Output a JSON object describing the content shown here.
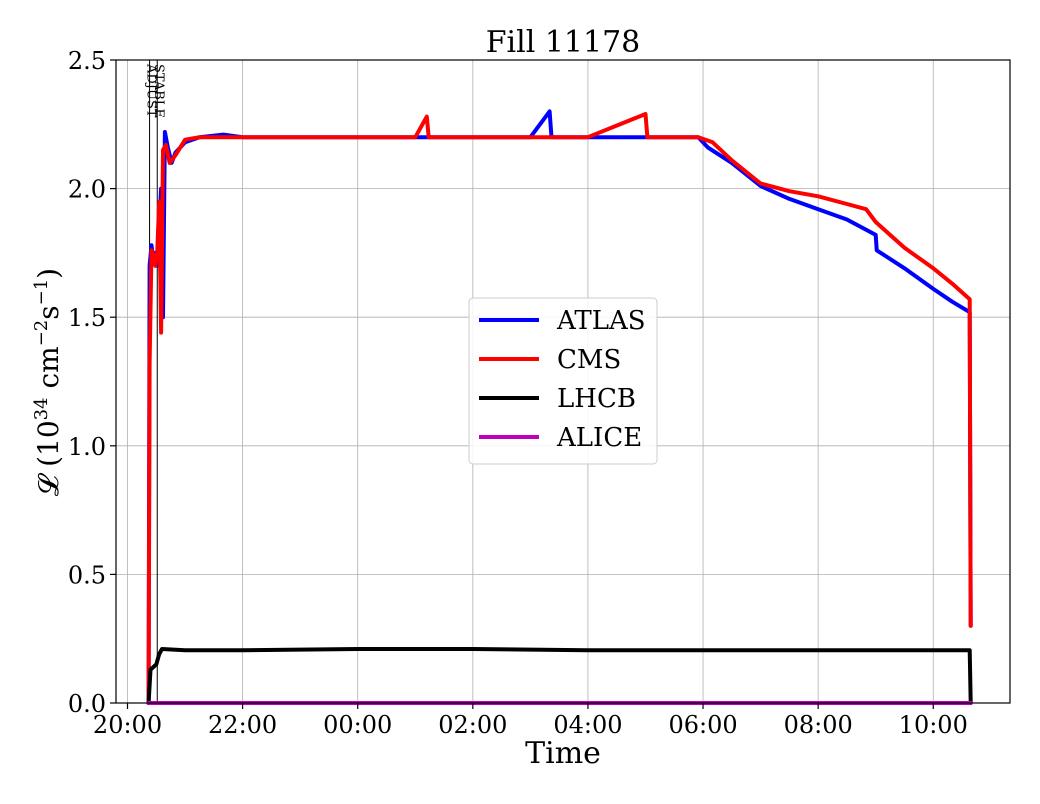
{
  "chart_data": {
    "type": "line",
    "title": "Fill 11178",
    "xlabel": "Time",
    "ylabel_prefix": "𝓛 (10",
    "ylabel_exp1": "34",
    "ylabel_mid": " cm",
    "ylabel_exp2": "−2",
    "ylabel_mid2": "s",
    "ylabel_exp3": "−1",
    "ylabel_suffix": ")",
    "xlim": [
      "19:48",
      "11:20"
    ],
    "ylim": [
      0,
      2.5
    ],
    "x_ticks": [
      "20:00",
      "22:00",
      "00:00",
      "02:00",
      "04:00",
      "06:00",
      "08:00",
      "10:00"
    ],
    "y_ticks": [
      "0.0",
      "0.5",
      "1.0",
      "1.5",
      "2.0",
      "2.5"
    ],
    "grid": true,
    "legend_position": "center-right",
    "markers": [
      {
        "label": "ADJUST",
        "time": "20:23"
      },
      {
        "label": "STABLE",
        "time": "20:31"
      }
    ],
    "series": [
      {
        "name": "ATLAS",
        "color": "#0000ff",
        "points": [
          [
            "20:22",
            0.0
          ],
          [
            "20:23",
            1.7
          ],
          [
            "20:25",
            1.78
          ],
          [
            "20:27",
            1.72
          ],
          [
            "20:29",
            1.75
          ],
          [
            "20:31",
            1.7
          ],
          [
            "20:33",
            1.85
          ],
          [
            "20:35",
            2.0
          ],
          [
            "20:37",
            1.5
          ],
          [
            "20:39",
            2.22
          ],
          [
            "20:42",
            2.16
          ],
          [
            "20:46",
            2.1
          ],
          [
            "20:50",
            2.14
          ],
          [
            "21:00",
            2.18
          ],
          [
            "21:15",
            2.2
          ],
          [
            "21:40",
            2.21
          ],
          [
            "22:00",
            2.2
          ],
          [
            "23:00",
            2.2
          ],
          [
            "00:00",
            2.2
          ],
          [
            "01:00",
            2.2
          ],
          [
            "02:00",
            2.2
          ],
          [
            "03:00",
            2.2
          ],
          [
            "03:20",
            2.3
          ],
          [
            "03:22",
            2.2
          ],
          [
            "04:00",
            2.2
          ],
          [
            "05:00",
            2.2
          ],
          [
            "05:55",
            2.2
          ],
          [
            "06:05",
            2.16
          ],
          [
            "06:30",
            2.1
          ],
          [
            "07:00",
            2.01
          ],
          [
            "07:30",
            1.96
          ],
          [
            "08:00",
            1.92
          ],
          [
            "08:30",
            1.88
          ],
          [
            "09:00",
            1.82
          ],
          [
            "09:01",
            1.76
          ],
          [
            "09:30",
            1.69
          ],
          [
            "10:00",
            1.61
          ],
          [
            "10:20",
            1.56
          ],
          [
            "10:38",
            1.52
          ],
          [
            "10:39",
            0.3
          ]
        ]
      },
      {
        "name": "CMS",
        "color": "#ff0000",
        "points": [
          [
            "20:22",
            0.0
          ],
          [
            "20:23",
            1.32
          ],
          [
            "20:25",
            1.76
          ],
          [
            "20:27",
            1.74
          ],
          [
            "20:29",
            1.7
          ],
          [
            "20:31",
            1.75
          ],
          [
            "20:33",
            1.95
          ],
          [
            "20:35",
            1.44
          ],
          [
            "20:37",
            2.15
          ],
          [
            "20:40",
            2.17
          ],
          [
            "20:44",
            2.1
          ],
          [
            "20:50",
            2.13
          ],
          [
            "21:00",
            2.19
          ],
          [
            "21:15",
            2.2
          ],
          [
            "21:40",
            2.2
          ],
          [
            "22:00",
            2.2
          ],
          [
            "23:00",
            2.2
          ],
          [
            "00:00",
            2.2
          ],
          [
            "01:00",
            2.2
          ],
          [
            "01:12",
            2.28
          ],
          [
            "01:14",
            2.2
          ],
          [
            "02:00",
            2.2
          ],
          [
            "03:00",
            2.2
          ],
          [
            "04:00",
            2.2
          ],
          [
            "05:00",
            2.29
          ],
          [
            "05:02",
            2.2
          ],
          [
            "05:55",
            2.2
          ],
          [
            "06:10",
            2.18
          ],
          [
            "06:30",
            2.11
          ],
          [
            "07:00",
            2.02
          ],
          [
            "07:30",
            1.99
          ],
          [
            "08:00",
            1.97
          ],
          [
            "08:30",
            1.94
          ],
          [
            "08:50",
            1.92
          ],
          [
            "09:00",
            1.87
          ],
          [
            "09:30",
            1.77
          ],
          [
            "10:00",
            1.69
          ],
          [
            "10:20",
            1.63
          ],
          [
            "10:38",
            1.57
          ],
          [
            "10:39",
            0.3
          ]
        ]
      },
      {
        "name": "LHCB",
        "color": "#000000",
        "points": [
          [
            "20:22",
            0.0
          ],
          [
            "20:24",
            0.13
          ],
          [
            "20:27",
            0.14
          ],
          [
            "20:30",
            0.15
          ],
          [
            "20:33",
            0.19
          ],
          [
            "20:36",
            0.21
          ],
          [
            "21:00",
            0.205
          ],
          [
            "22:00",
            0.205
          ],
          [
            "00:00",
            0.21
          ],
          [
            "02:00",
            0.21
          ],
          [
            "04:00",
            0.205
          ],
          [
            "06:00",
            0.205
          ],
          [
            "08:00",
            0.205
          ],
          [
            "10:00",
            0.205
          ],
          [
            "10:38",
            0.205
          ],
          [
            "10:39",
            0.0
          ]
        ]
      },
      {
        "name": "ALICE",
        "color": "#bf00bf",
        "points": [
          [
            "20:22",
            0.0
          ],
          [
            "10:39",
            0.0
          ]
        ]
      }
    ]
  }
}
